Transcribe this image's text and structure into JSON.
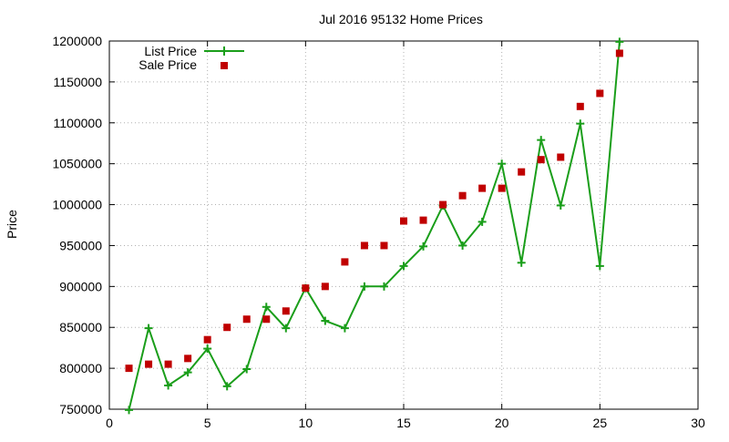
{
  "chart_data": {
    "type": "line",
    "title": "Jul 2016 95132 Home Prices",
    "xlabel": "",
    "ylabel": "Price",
    "xlim": [
      0,
      30
    ],
    "ylim": [
      750000,
      1200000
    ],
    "xticks": [
      0,
      5,
      10,
      15,
      20,
      25,
      30
    ],
    "yticks": [
      750000,
      800000,
      850000,
      900000,
      950000,
      1000000,
      1050000,
      1100000,
      1150000,
      1200000
    ],
    "grid": true,
    "legend_position": "top-left",
    "series": [
      {
        "name": "List Price",
        "style": "line-plus",
        "color": "#1a9e1a",
        "x": [
          1,
          2,
          3,
          4,
          5,
          6,
          7,
          8,
          9,
          10,
          11,
          12,
          13,
          14,
          15,
          16,
          17,
          18,
          19,
          20,
          21,
          22,
          23,
          24,
          25,
          26
        ],
        "y": [
          749000,
          849000,
          779000,
          795000,
          824000,
          778000,
          799000,
          875000,
          849000,
          898000,
          858000,
          849000,
          900000,
          900000,
          925000,
          949000,
          999000,
          950000,
          979000,
          1050000,
          929000,
          1079000,
          999000,
          1099000,
          925000,
          1199000
        ]
      },
      {
        "name": "Sale Price",
        "style": "square",
        "color": "#c00000",
        "x": [
          1,
          2,
          3,
          4,
          5,
          6,
          7,
          8,
          9,
          10,
          11,
          12,
          13,
          14,
          15,
          16,
          17,
          18,
          19,
          20,
          21,
          22,
          23,
          24,
          25,
          26
        ],
        "y": [
          800000,
          805000,
          805000,
          812000,
          835000,
          850000,
          860000,
          860000,
          870000,
          898000,
          900000,
          930000,
          950000,
          950000,
          980000,
          981000,
          1000000,
          1011000,
          1020000,
          1020000,
          1040000,
          1055000,
          1058000,
          1120000,
          1136000,
          1185000
        ]
      }
    ]
  }
}
